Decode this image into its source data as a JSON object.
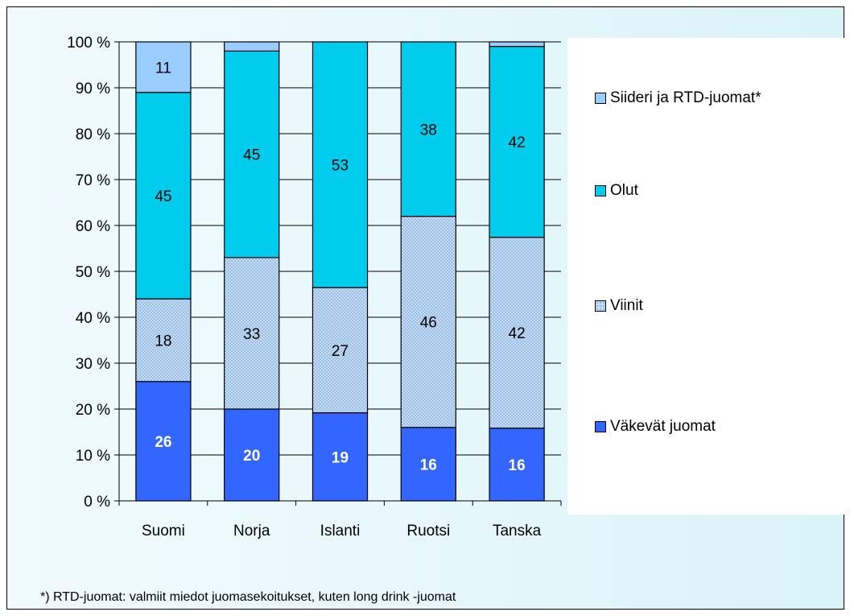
{
  "colors": {
    "vakevat": "#3366ff",
    "viinit": "#9cc2ec",
    "olut": "#00ccee",
    "siideri": "#99ccff"
  },
  "legend": [
    {
      "label": "Siideri ja RTD-juomat*",
      "color": "#99ccff",
      "pattern": "solid"
    },
    {
      "label": "Olut",
      "color": "#00ccee",
      "pattern": "solid"
    },
    {
      "label": "Viinit",
      "color": "#9cc2ec",
      "pattern": "dotted"
    },
    {
      "label": "Väkevät juomat",
      "color": "#3366ff",
      "pattern": "solid"
    }
  ],
  "footnote": "*) RTD-juomat: valmiit miedot juomasekoitukset, kuten long drink -juomat",
  "chart_data": {
    "type": "bar",
    "stacked": "percent",
    "categories": [
      "Suomi",
      "Norja",
      "Islanti",
      "Ruotsi",
      "Tanska"
    ],
    "series": [
      {
        "name": "Väkevät juomat",
        "values": [
          26,
          20,
          19,
          16,
          16
        ],
        "labels": [
          "26",
          "20",
          "19",
          "16",
          "16"
        ]
      },
      {
        "name": "Viinit",
        "values": [
          18,
          33,
          27,
          46,
          42
        ],
        "labels": [
          "18",
          "33",
          "27",
          "46",
          "42"
        ]
      },
      {
        "name": "Olut",
        "values": [
          45,
          45,
          53,
          38,
          42
        ],
        "labels": [
          "45",
          "45",
          "53",
          "38",
          "42"
        ]
      },
      {
        "name": "Siideri ja RTD-juomat*",
        "values": [
          11,
          2,
          0,
          0,
          1
        ],
        "labels": [
          "11",
          "",
          "",
          "",
          ""
        ]
      }
    ],
    "yticks": [
      "0 %",
      "10 %",
      "20 %",
      "30 %",
      "40 %",
      "50 %",
      "60 %",
      "70 %",
      "80 %",
      "90 %",
      "100 %"
    ],
    "ylim": [
      0,
      100
    ],
    "grid": true,
    "legend_position": "right"
  }
}
